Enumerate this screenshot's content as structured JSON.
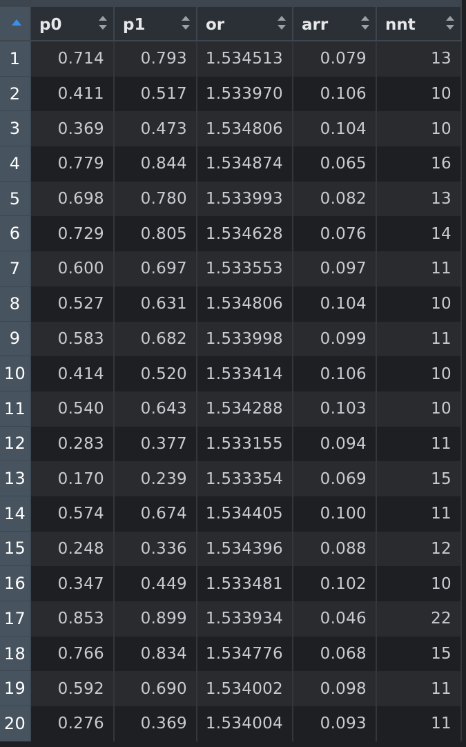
{
  "table": {
    "sort_column": "index",
    "columns": [
      "p0",
      "p1",
      "or",
      "arr",
      "nnt"
    ],
    "rows": [
      {
        "index": "1",
        "p0": "0.714",
        "p1": "0.793",
        "or": "1.534513",
        "arr": "0.079",
        "nnt": "13"
      },
      {
        "index": "2",
        "p0": "0.411",
        "p1": "0.517",
        "or": "1.533970",
        "arr": "0.106",
        "nnt": "10"
      },
      {
        "index": "3",
        "p0": "0.369",
        "p1": "0.473",
        "or": "1.534806",
        "arr": "0.104",
        "nnt": "10"
      },
      {
        "index": "4",
        "p0": "0.779",
        "p1": "0.844",
        "or": "1.534874",
        "arr": "0.065",
        "nnt": "16"
      },
      {
        "index": "5",
        "p0": "0.698",
        "p1": "0.780",
        "or": "1.533993",
        "arr": "0.082",
        "nnt": "13"
      },
      {
        "index": "6",
        "p0": "0.729",
        "p1": "0.805",
        "or": "1.534628",
        "arr": "0.076",
        "nnt": "14"
      },
      {
        "index": "7",
        "p0": "0.600",
        "p1": "0.697",
        "or": "1.533553",
        "arr": "0.097",
        "nnt": "11"
      },
      {
        "index": "8",
        "p0": "0.527",
        "p1": "0.631",
        "or": "1.534806",
        "arr": "0.104",
        "nnt": "10"
      },
      {
        "index": "9",
        "p0": "0.583",
        "p1": "0.682",
        "or": "1.533998",
        "arr": "0.099",
        "nnt": "11"
      },
      {
        "index": "10",
        "p0": "0.414",
        "p1": "0.520",
        "or": "1.533414",
        "arr": "0.106",
        "nnt": "10"
      },
      {
        "index": "11",
        "p0": "0.540",
        "p1": "0.643",
        "or": "1.534288",
        "arr": "0.103",
        "nnt": "10"
      },
      {
        "index": "12",
        "p0": "0.283",
        "p1": "0.377",
        "or": "1.533155",
        "arr": "0.094",
        "nnt": "11"
      },
      {
        "index": "13",
        "p0": "0.170",
        "p1": "0.239",
        "or": "1.533354",
        "arr": "0.069",
        "nnt": "15"
      },
      {
        "index": "14",
        "p0": "0.574",
        "p1": "0.674",
        "or": "1.534405",
        "arr": "0.100",
        "nnt": "11"
      },
      {
        "index": "15",
        "p0": "0.248",
        "p1": "0.336",
        "or": "1.534396",
        "arr": "0.088",
        "nnt": "12"
      },
      {
        "index": "16",
        "p0": "0.347",
        "p1": "0.449",
        "or": "1.533481",
        "arr": "0.102",
        "nnt": "10"
      },
      {
        "index": "17",
        "p0": "0.853",
        "p1": "0.899",
        "or": "1.533934",
        "arr": "0.046",
        "nnt": "22"
      },
      {
        "index": "18",
        "p0": "0.766",
        "p1": "0.834",
        "or": "1.534776",
        "arr": "0.068",
        "nnt": "15"
      },
      {
        "index": "19",
        "p0": "0.592",
        "p1": "0.690",
        "or": "1.534002",
        "arr": "0.098",
        "nnt": "11"
      },
      {
        "index": "20",
        "p0": "0.276",
        "p1": "0.369",
        "or": "1.534004",
        "arr": "0.093",
        "nnt": "11"
      }
    ]
  },
  "colors": {
    "header_bg": "#2b3036",
    "index_bg": "#47535f",
    "row_odd": "#2a2b2e",
    "row_even": "#1e1f22",
    "sort_accent": "#3f8fe8"
  },
  "icons": {
    "index_sort": "sort-ascending-icon",
    "column_sort": "sort-both-icon"
  }
}
